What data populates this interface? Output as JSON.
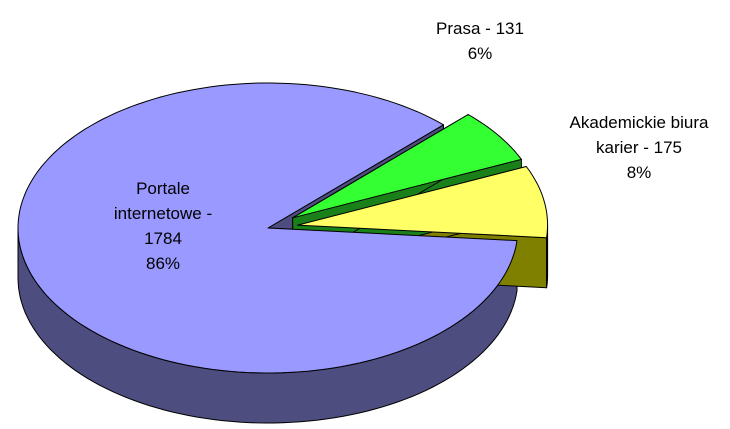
{
  "chart_data": {
    "type": "pie",
    "three_d": true,
    "categories": [
      "Portale internetowe - 1784",
      "Akademickie biura karier - 175",
      "Prasa - 131"
    ],
    "values": [
      86,
      8,
      6
    ],
    "value_labels": [
      "86%",
      "8%",
      "6%"
    ],
    "colors": [
      "#9999ff",
      "#ffff66",
      "#33ff33"
    ],
    "side_colors": [
      "#4d4d80",
      "#808000",
      "#1a801a"
    ],
    "exploded": [
      false,
      true,
      true
    ]
  }
}
